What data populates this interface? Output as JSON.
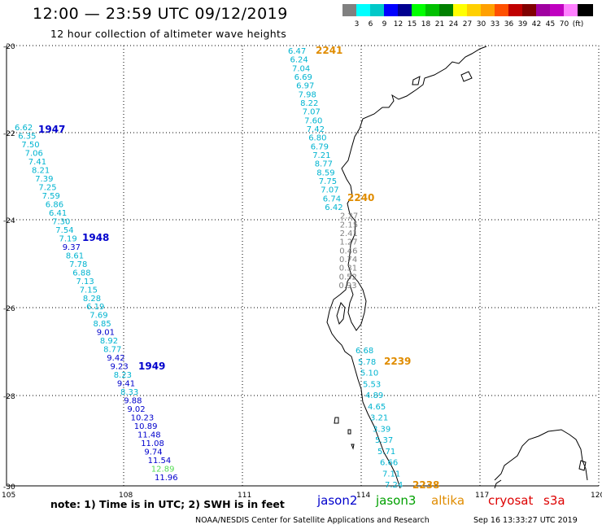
{
  "title": "12:00 — 23:59 UTC 09/12/2019",
  "subtitle": "12 hour collection of altimeter wave heights",
  "legend": {
    "colors": [
      "#808080",
      "#00ffff",
      "#00c8c8",
      "#0000ff",
      "#000090",
      "#00ff00",
      "#00c000",
      "#008000",
      "#ffff00",
      "#ffd000",
      "#ffa000",
      "#ff5000",
      "#c00000",
      "#800000",
      "#a000a0",
      "#c000c0",
      "#ff80ff",
      "#000000"
    ],
    "labels": [
      "3",
      "6",
      "9",
      "12",
      "15",
      "18",
      "21",
      "24",
      "27",
      "30",
      "33",
      "36",
      "39",
      "42",
      "45",
      "70",
      "(ft)"
    ]
  },
  "axes": {
    "lat_labels": [
      "-20",
      "-22",
      "-24",
      "-26",
      "-28",
      "-30"
    ],
    "lon_labels": [
      "105",
      "108",
      "111",
      "114",
      "117",
      "120"
    ]
  },
  "tracks": [
    {
      "times": [
        {
          "label": "2241",
          "color": "#e08c00"
        },
        {
          "label": "2240",
          "color": "#e08c00"
        }
      ],
      "values": [
        "6.47",
        "6.24",
        "7.04",
        "6.69",
        "6.97",
        "7.98",
        "8.22",
        "7.07",
        "7.60",
        "7.42",
        "6.80",
        "6.79",
        "7.21",
        "8.77",
        "8.59",
        "7.75",
        "7.07",
        "6.74",
        "6.42",
        "2.27",
        "2.15",
        "2.41",
        "1.27",
        "0.46",
        "0.74",
        "0.31",
        "0.52",
        "0.93"
      ]
    },
    {
      "times": [
        {
          "label": "2239",
          "color": "#e08c00"
        },
        {
          "label": "2238",
          "color": "#e08c00"
        }
      ],
      "values": [
        "6.68",
        "5.78",
        "5.10",
        "5.53",
        "4.89",
        "4.65",
        "3.21",
        "3.39",
        "5.37",
        "5.71",
        "6.66",
        "7.11",
        "7.24"
      ]
    },
    {
      "times": [
        {
          "label": "1947",
          "color": "#0000cc"
        },
        {
          "label": "1948",
          "color": "#0000cc"
        },
        {
          "label": "1949",
          "color": "#0000cc"
        }
      ],
      "values": [
        "6.62",
        "6.35",
        "7.50",
        "7.06",
        "7.41",
        "8.21",
        "7.39",
        "7.25",
        "7.59",
        "6.86",
        "6.41",
        "7.30",
        "7.54",
        "7.19",
        "9.37",
        "8.61",
        "7.78",
        "6.88",
        "7.13",
        "7.15",
        "8.28",
        "6.19",
        "7.69",
        "8.85",
        "9.01",
        "8.92",
        "8.77",
        "9.42",
        "9.23",
        "8.23",
        "9.41",
        "8.33",
        "9.88",
        "9.02",
        "10.23",
        "10.89",
        "11.48",
        "11.08",
        "9.74",
        "11.54",
        "12.89",
        "11.96"
      ]
    }
  ],
  "note": "note:  1) Time is in UTC;  2) SWH is in feet",
  "satellites": [
    {
      "name": "jason2",
      "color": "#0000cc"
    },
    {
      "name": "jason3",
      "color": "#00a000"
    },
    {
      "name": "altika",
      "color": "#e08c00"
    },
    {
      "name": "cryosat",
      "color": "#dd0000"
    },
    {
      "name": "s3a",
      "color": "#dd0000"
    }
  ],
  "credit": "NOAA/NESDIS Center for Satellite Applications and Research",
  "timestamp": "Sep 16 13:33:27 UTC 2019"
}
